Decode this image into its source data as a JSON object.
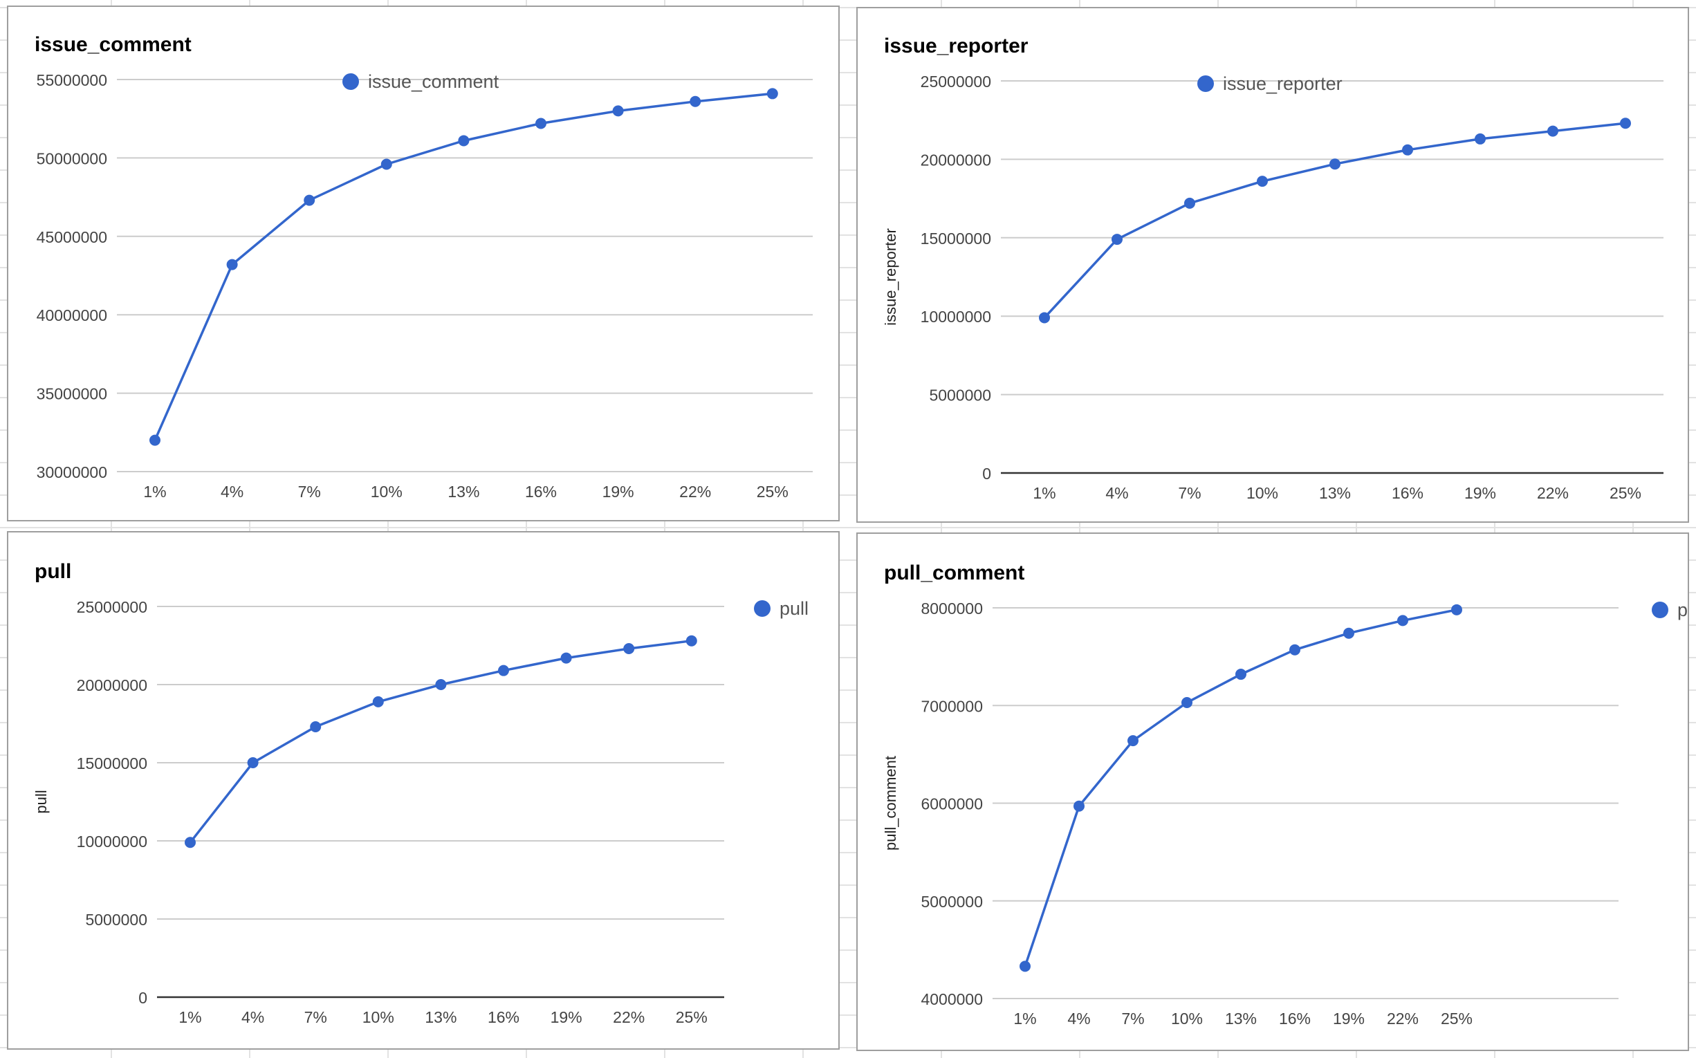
{
  "colors": {
    "series": "#3366cc",
    "grid": "#cccccc",
    "axis": "#333333",
    "text": "#444444"
  },
  "chart_data": [
    {
      "type": "line",
      "title": "issue_comment",
      "ylabel": "",
      "categories": [
        "1%",
        "4%",
        "7%",
        "10%",
        "13%",
        "16%",
        "19%",
        "22%",
        "25%"
      ],
      "series": [
        {
          "name": "issue_comment",
          "values": [
            32000000,
            43200000,
            47300000,
            49600000,
            51100000,
            52200000,
            53000000,
            53600000,
            54100000
          ]
        }
      ],
      "ylim": [
        30000000,
        55000000
      ],
      "yticks": [
        "30000000",
        "35000000",
        "40000000",
        "45000000",
        "50000000",
        "55000000"
      ],
      "legend": "top",
      "grid": true
    },
    {
      "type": "line",
      "title": "issue_reporter",
      "ylabel": "issue_reporter",
      "categories": [
        "1%",
        "4%",
        "7%",
        "10%",
        "13%",
        "16%",
        "19%",
        "22%",
        "25%"
      ],
      "series": [
        {
          "name": "issue_reporter",
          "values": [
            9900000,
            14900000,
            17200000,
            18600000,
            19700000,
            20600000,
            21300000,
            21800000,
            22300000
          ]
        }
      ],
      "ylim": [
        0,
        25000000
      ],
      "yticks": [
        "0",
        "5000000",
        "10000000",
        "15000000",
        "20000000",
        "25000000"
      ],
      "legend": "top",
      "grid": true
    },
    {
      "type": "line",
      "title": "pull",
      "ylabel": "pull",
      "categories": [
        "1%",
        "4%",
        "7%",
        "10%",
        "13%",
        "16%",
        "19%",
        "22%",
        "25%"
      ],
      "series": [
        {
          "name": "pull",
          "values": [
            9900000,
            15000000,
            17300000,
            18900000,
            20000000,
            20900000,
            21700000,
            22300000,
            22800000
          ]
        }
      ],
      "ylim": [
        0,
        25000000
      ],
      "yticks": [
        "0",
        "5000000",
        "10000000",
        "15000000",
        "20000000",
        "25000000"
      ],
      "legend": "right",
      "grid": true
    },
    {
      "type": "line",
      "title": "pull_comment",
      "ylabel": "pull_comment",
      "categories": [
        "1%",
        "4%",
        "7%",
        "10%",
        "13%",
        "16%",
        "19%",
        "22%",
        "25%"
      ],
      "series": [
        {
          "name": "pull_comment",
          "values": [
            4330000,
            5970000,
            6640000,
            7030000,
            7320000,
            7570000,
            7740000,
            7870000,
            7980000
          ]
        }
      ],
      "ylim": [
        4000000,
        8000000
      ],
      "yticks": [
        "4000000",
        "5000000",
        "6000000",
        "7000000",
        "8000000"
      ],
      "legend": "right",
      "grid": true
    }
  ]
}
